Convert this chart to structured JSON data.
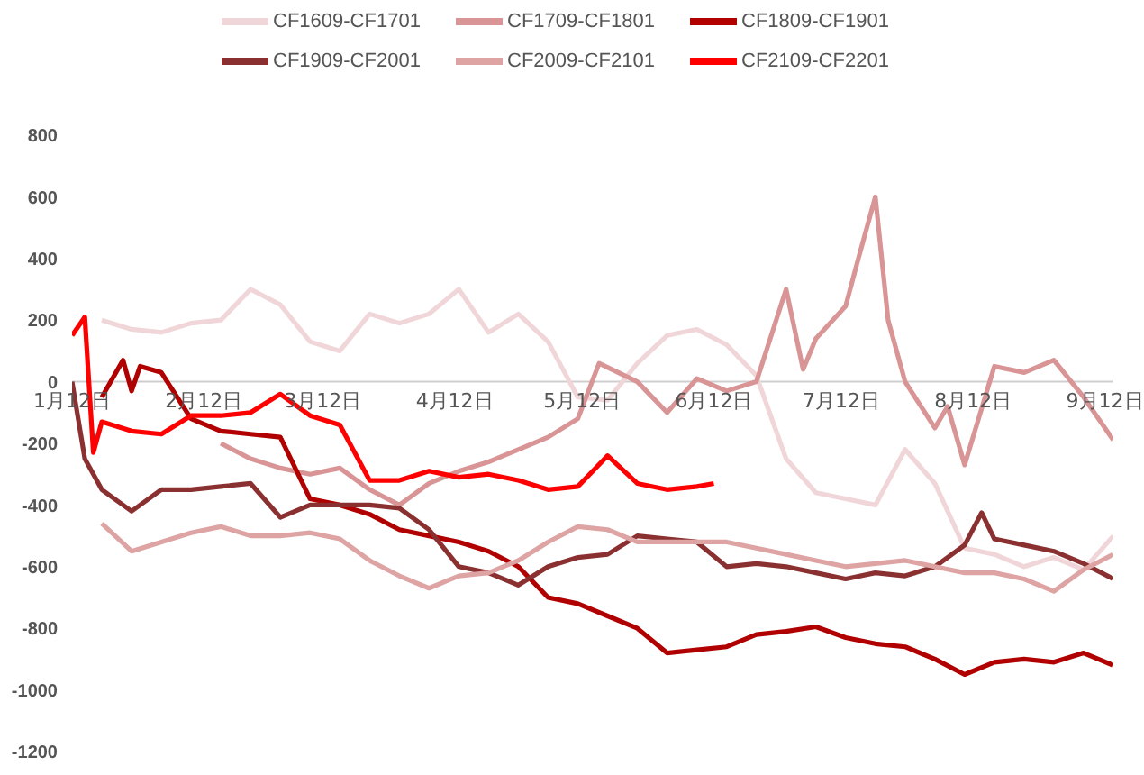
{
  "chart_data": {
    "type": "line",
    "legend": "top",
    "marker": "none",
    "line_style": "solid",
    "xlim": [
      "--01-12",
      "--09-14"
    ],
    "xticks": [
      {
        "value": "--01-12",
        "label": "1月12日"
      },
      {
        "value": "--02-12",
        "label": "2月12日"
      },
      {
        "value": "--03-12",
        "label": "3月12日"
      },
      {
        "value": "--04-12",
        "label": "4月12日"
      },
      {
        "value": "--05-12",
        "label": "5月12日"
      },
      {
        "value": "--06-12",
        "label": "6月12日"
      },
      {
        "value": "--07-12",
        "label": "7月12日"
      },
      {
        "value": "--08-12",
        "label": "8月12日"
      },
      {
        "value": "--09-12",
        "label": "9月12日"
      }
    ],
    "ylim": [
      -1200,
      800
    ],
    "yticks": [
      -1200,
      -1000,
      -800,
      -600,
      -400,
      -200,
      0,
      200,
      400,
      600,
      800
    ],
    "series": [
      {
        "name": "CF1609-CF1701",
        "color": "#f0d6d8",
        "x": [
          "--01-19",
          "--01-26",
          "--02-02",
          "--02-09",
          "--02-16",
          "--02-23",
          "--03-02",
          "--03-09",
          "--03-16",
          "--03-23",
          "--03-30",
          "--04-06",
          "--04-13",
          "--04-20",
          "--04-27",
          "--05-04",
          "--05-11",
          "--05-18",
          "--05-25",
          "--06-01",
          "--06-08",
          "--06-15",
          "--06-22",
          "--06-29",
          "--07-06",
          "--07-13",
          "--07-20",
          "--07-27",
          "--08-03",
          "--08-10",
          "--08-17",
          "--08-24",
          "--08-31",
          "--09-07",
          "--09-14"
        ],
        "values": [
          200,
          170,
          160,
          190,
          200,
          300,
          250,
          130,
          100,
          220,
          190,
          220,
          300,
          160,
          220,
          130,
          -50,
          -60,
          60,
          150,
          170,
          120,
          20,
          -250,
          -360,
          -380,
          -400,
          -220,
          -330,
          -540,
          -560,
          -600,
          -570,
          -610,
          -500
        ]
      },
      {
        "name": "CF1709-CF1801",
        "color": "#d99496",
        "x": [
          "--02-16",
          "--02-23",
          "--03-02",
          "--03-09",
          "--03-16",
          "--03-23",
          "--03-30",
          "--04-06",
          "--04-13",
          "--04-20",
          "--04-27",
          "--05-04",
          "--05-11",
          "--05-16",
          "--05-25",
          "--06-01",
          "--06-08",
          "--06-15",
          "--06-22",
          "--06-29",
          "--07-03",
          "--07-06",
          "--07-13",
          "--07-16",
          "--07-20",
          "--07-23",
          "--07-27",
          "--08-03",
          "--08-06",
          "--08-10",
          "--08-17",
          "--08-24",
          "--08-31",
          "--09-07",
          "--09-14"
        ],
        "values": [
          -200,
          -250,
          -280,
          -300,
          -280,
          -350,
          -400,
          -330,
          -290,
          -260,
          -220,
          -180,
          -120,
          60,
          0,
          -100,
          10,
          -30,
          0,
          300,
          40,
          140,
          245,
          400,
          600,
          200,
          0,
          -150,
          -80,
          -270,
          50,
          30,
          70,
          -50,
          -190
        ]
      },
      {
        "name": "CF1809-CF1901",
        "color": "#b00000",
        "x": [
          "--01-19",
          "--01-24",
          "--01-26",
          "--01-28",
          "--02-02",
          "--02-09",
          "--02-16",
          "--02-23",
          "--03-02",
          "--03-09",
          "--03-16",
          "--03-23",
          "--03-30",
          "--04-06",
          "--04-13",
          "--04-20",
          "--04-27",
          "--05-04",
          "--05-11",
          "--05-18",
          "--05-25",
          "--06-01",
          "--06-08",
          "--06-15",
          "--06-22",
          "--06-29",
          "--07-06",
          "--07-13",
          "--07-20",
          "--07-27",
          "--08-03",
          "--08-10",
          "--08-17",
          "--08-24",
          "--08-31",
          "--09-07",
          "--09-14"
        ],
        "values": [
          -50,
          70,
          -30,
          50,
          30,
          -120,
          -160,
          -170,
          -180,
          -380,
          -400,
          -430,
          -480,
          -500,
          -520,
          -550,
          -600,
          -700,
          -720,
          -760,
          -800,
          -880,
          -870,
          -860,
          -820,
          -810,
          -795,
          -830,
          -850,
          -860,
          -900,
          -950,
          -910,
          -900,
          -910,
          -880,
          -920
        ]
      },
      {
        "name": "CF1909-CF2001",
        "color": "#8b3030",
        "x": [
          "--01-12",
          "--01-15",
          "--01-19",
          "--01-26",
          "--02-02",
          "--02-09",
          "--02-16",
          "--02-23",
          "--03-02",
          "--03-09",
          "--03-16",
          "--03-23",
          "--03-30",
          "--04-06",
          "--04-13",
          "--04-20",
          "--04-27",
          "--05-04",
          "--05-11",
          "--05-18",
          "--05-25",
          "--06-01",
          "--06-08",
          "--06-15",
          "--06-22",
          "--06-29",
          "--07-06",
          "--07-13",
          "--07-20",
          "--07-27",
          "--08-03",
          "--08-10",
          "--08-14",
          "--08-17",
          "--08-24",
          "--08-31",
          "--09-07",
          "--09-14"
        ],
        "values": [
          0,
          -250,
          -350,
          -420,
          -350,
          -350,
          -340,
          -330,
          -440,
          -400,
          -400,
          -400,
          -410,
          -480,
          -600,
          -620,
          -660,
          -600,
          -570,
          -560,
          -500,
          -510,
          -520,
          -600,
          -590,
          -600,
          -620,
          -640,
          -620,
          -630,
          -600,
          -530,
          -425,
          -510,
          -530,
          -550,
          -590,
          -640
        ]
      },
      {
        "name": "CF2009-CF2101",
        "color": "#dea3a3",
        "x": [
          "--01-19",
          "--01-26",
          "--02-02",
          "--02-09",
          "--02-16",
          "--02-23",
          "--03-02",
          "--03-09",
          "--03-16",
          "--03-23",
          "--03-30",
          "--04-06",
          "--04-13",
          "--04-20",
          "--04-27",
          "--05-04",
          "--05-11",
          "--05-18",
          "--05-25",
          "--06-01",
          "--06-08",
          "--06-15",
          "--06-22",
          "--06-29",
          "--07-06",
          "--07-13",
          "--07-20",
          "--07-27",
          "--08-03",
          "--08-10",
          "--08-17",
          "--08-24",
          "--08-31",
          "--09-07",
          "--09-14"
        ],
        "values": [
          -460,
          -550,
          -520,
          -490,
          -470,
          -500,
          -500,
          -490,
          -510,
          -580,
          -630,
          -670,
          -630,
          -620,
          -580,
          -520,
          -470,
          -480,
          -520,
          -520,
          -520,
          -520,
          -540,
          -560,
          -580,
          -600,
          -590,
          -580,
          -600,
          -620,
          -620,
          -640,
          -680,
          -610,
          -560
        ]
      },
      {
        "name": "CF2109-CF2201",
        "color": "#ff0000",
        "x": [
          "--01-12",
          "--01-15",
          "--01-17",
          "--01-19",
          "--01-26",
          "--02-02",
          "--02-09",
          "--02-16",
          "--02-23",
          "--03-02",
          "--03-09",
          "--03-16",
          "--03-23",
          "--03-30",
          "--04-06",
          "--04-13",
          "--04-20",
          "--04-27",
          "--05-04",
          "--05-11",
          "--05-18",
          "--05-25",
          "--06-01",
          "--06-08",
          "--06-12"
        ],
        "values": [
          150,
          210,
          -230,
          -130,
          -160,
          -170,
          -110,
          -110,
          -100,
          -40,
          -110,
          -140,
          -320,
          -320,
          -290,
          -310,
          -300,
          -320,
          -350,
          -340,
          -240,
          -330,
          -350,
          -340,
          -330
        ]
      }
    ]
  }
}
